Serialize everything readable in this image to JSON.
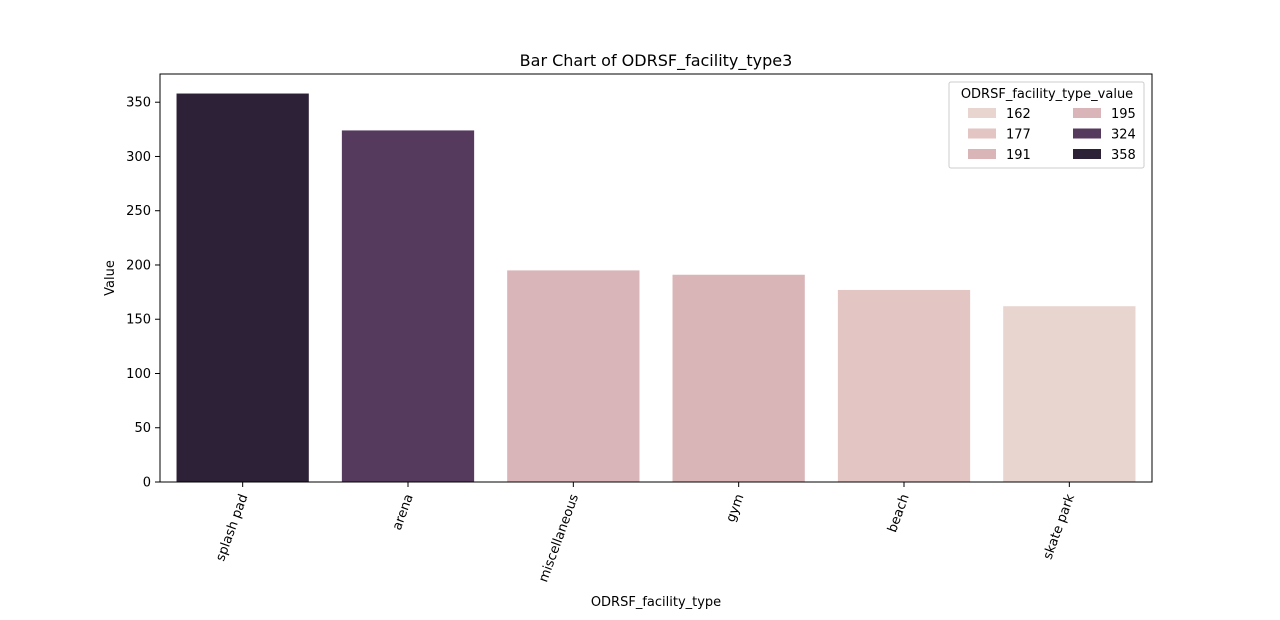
{
  "chart_data": {
    "type": "bar",
    "title": "Bar Chart of ODRSF_facility_type3",
    "xlabel": "ODRSF_facility_type",
    "ylabel": "Value",
    "categories": [
      "splash pad",
      "arena",
      "miscellaneous",
      "gym",
      "beach",
      "skate park"
    ],
    "values": [
      358,
      324,
      195,
      191,
      177,
      162
    ],
    "bar_colors": [
      "#2d2137",
      "#553a5e",
      "#d9b4b8",
      "#dab5b8",
      "#e3c5c3",
      "#e8d5d0"
    ],
    "ylim": [
      0,
      376
    ],
    "yticks": [
      0,
      50,
      100,
      150,
      200,
      250,
      300,
      350
    ],
    "grid": false,
    "legend": {
      "title": "ODRSF_facility_type_value",
      "placement": "top-right",
      "columns": 2,
      "entries": [
        {
          "label": "162",
          "color": "#e8d5d0"
        },
        {
          "label": "177",
          "color": "#e3c5c3"
        },
        {
          "label": "191",
          "color": "#dab5b8"
        },
        {
          "label": "195",
          "color": "#d9b4b8"
        },
        {
          "label": "324",
          "color": "#553a5e"
        },
        {
          "label": "358",
          "color": "#2d2137"
        }
      ]
    }
  }
}
